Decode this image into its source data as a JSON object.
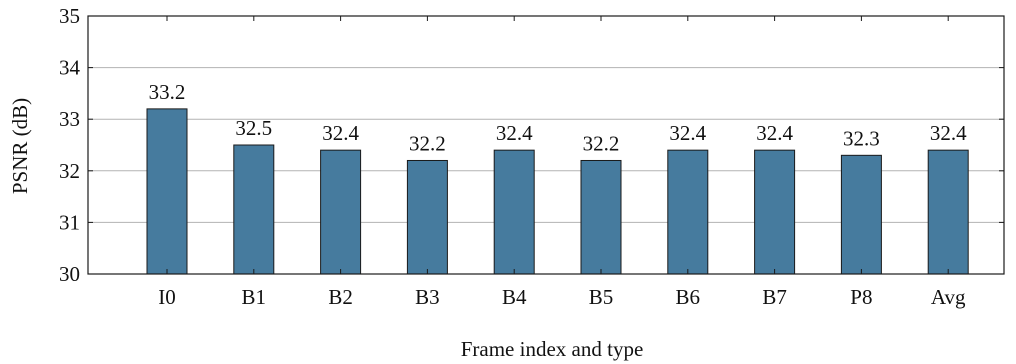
{
  "chart_data": {
    "type": "bar",
    "categories": [
      "I0",
      "B1",
      "B2",
      "B3",
      "B4",
      "B5",
      "B6",
      "B7",
      "P8",
      "Avg"
    ],
    "values": [
      33.2,
      32.5,
      32.4,
      32.2,
      32.4,
      32.2,
      32.4,
      32.4,
      32.3,
      32.4
    ],
    "data_labels": [
      "33.2",
      "32.5",
      "32.4",
      "32.2",
      "32.4",
      "32.2",
      "32.4",
      "32.4",
      "32.3",
      "32.4"
    ],
    "title": "",
    "xlabel": "Frame index and type",
    "ylabel": "PSNR (dB)",
    "ylim": [
      30,
      35
    ],
    "yticks": [
      30,
      31,
      32,
      33,
      34,
      35
    ],
    "ytick_labels": [
      "30",
      "31",
      "32",
      "33",
      "34",
      "35"
    ],
    "grid": "horizontal",
    "legend": "none",
    "colors": {
      "bar_fill": "#467B9E",
      "bar_stroke": "#1a1a1a",
      "grid": "#b3b3b3",
      "axis": "#1a1a1a"
    }
  }
}
